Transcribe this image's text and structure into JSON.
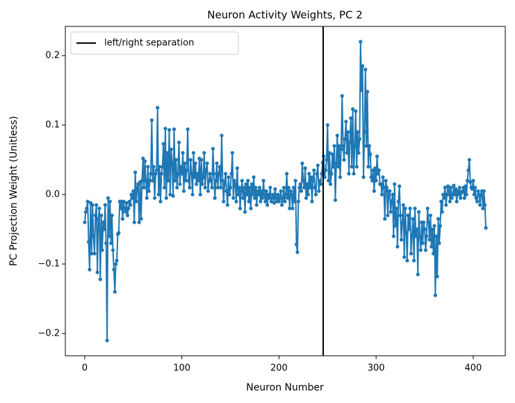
{
  "chart_data": {
    "type": "line",
    "title": "Neuron Activity Weights, PC 2",
    "x_label": "Neuron Number",
    "y_label": "PC Projection Weight (Unitless)",
    "xlim": [
      -20,
      433
    ],
    "xticks": [
      0,
      100,
      200,
      300,
      400
    ],
    "ylim": [
      -0.232,
      0.242
    ],
    "yticks": [
      {
        "value": -0.2,
        "label": "−0.2"
      },
      {
        "value": -0.1,
        "label": "−0.1"
      },
      {
        "value": 0,
        "label": "0.0"
      },
      0.1,
      0.2
    ],
    "grid": false,
    "legend": "upper left",
    "vlines": [
      {
        "x": 245.5,
        "name": "left/right separation",
        "color": "#000000"
      }
    ],
    "series": [
      {
        "color": "#1f77b4",
        "values": [
          -0.04,
          -0.025,
          -0.02,
          -0.01,
          -0.068,
          -0.108,
          -0.012,
          -0.085,
          -0.015,
          -0.06,
          -0.085,
          -0.03,
          -0.015,
          -0.112,
          -0.035,
          -0.02,
          -0.122,
          -0.03,
          -0.08,
          -0.04,
          -0.05,
          -0.015,
          -0.07,
          -0.21,
          -0.005,
          -0.06,
          -0.01,
          -0.07,
          -0.03,
          -0.08,
          -0.108,
          -0.14,
          -0.1,
          -0.095,
          -0.057,
          -0.055,
          -0.01,
          -0.02,
          -0.01,
          -0.035,
          -0.01,
          -0.02,
          -0.025,
          -0.012,
          -0.03,
          -0.02,
          -0.01,
          -0.015,
          0.0,
          -0.005,
          0.005,
          -0.04,
          0.032,
          -0.01,
          0.01,
          0.015,
          -0.04,
          0.018,
          -0.035,
          0.02,
          0.052,
          0.01,
          0.048,
          0.02,
          -0.005,
          0.04,
          0.005,
          0.02,
          0.03,
          0.107,
          0.02,
          0.04,
          -0.005,
          0.03,
          0.035,
          0.125,
          0.0,
          0.04,
          -0.01,
          0.03,
          0.04,
          0.073,
          0.01,
          0.095,
          -0.005,
          0.06,
          0.02,
          0.093,
          0.0,
          0.065,
          0.045,
          -0.002,
          0.094,
          0.02,
          0.05,
          0.01,
          0.03,
          0.075,
          0.015,
          0.04,
          0.03,
          0.06,
          0.005,
          0.045,
          0.02,
          0.035,
          0.094,
          0.02,
          0.01,
          0.05,
          0.03,
          0.0,
          0.06,
          0.025,
          0.045,
          0.015,
          0.03,
          0.02,
          0.052,
          0.0,
          0.05,
          0.015,
          0.025,
          0.06,
          0.01,
          0.035,
          0.045,
          0.005,
          0.02,
          0.03,
          0.02,
          0.01,
          0.066,
          0.03,
          -0.005,
          0.02,
          0.045,
          0.01,
          0.03,
          0.04,
          0.01,
          0.085,
          0.02,
          -0.01,
          0.015,
          0.03,
          0.005,
          -0.015,
          0.025,
          0.0,
          0.01,
          0.03,
          0.06,
          -0.005,
          0.02,
          0.015,
          -0.01,
          0.038,
          0.0,
          0.01,
          -0.02,
          0.005,
          0.02,
          -0.005,
          0.01,
          -0.025,
          0.015,
          0.0,
          0.02,
          -0.01,
          0.01,
          -0.02,
          0.015,
          0.0,
          0.025,
          -0.005,
          0.01,
          -0.015,
          0.005,
          0.0,
          0.01,
          -0.01,
          0.005,
          -0.005,
          0.02,
          0.0,
          -0.01,
          0.005,
          -0.015,
          0.0,
          -0.005,
          0.01,
          -0.01,
          -0.005,
          0.0,
          -0.012,
          0.008,
          -0.005,
          -0.01,
          0.0,
          -0.01,
          -0.005,
          0.005,
          -0.015,
          -0.005,
          0.01,
          -0.01,
          0.0,
          0.03,
          -0.005,
          0.01,
          -0.02,
          0.005,
          0.0,
          -0.02,
          0.01,
          -0.01,
          0.02,
          -0.072,
          -0.083,
          -0.01,
          0.01,
          0.015,
          0.005,
          0.045,
          0.02,
          0.01,
          0.038,
          -0.005,
          0.015,
          0.0,
          0.03,
          0.01,
          0.025,
          -0.01,
          0.02,
          0.035,
          0.01,
          0.0,
          0.03,
          0.042,
          0.005,
          0.02,
          0.015,
          0.03,
          0.046,
          0.055,
          0.025,
          0.035,
          0.05,
          0.1,
          0.02,
          0.06,
          0.015,
          0.03,
          0.058,
          0.04,
          0.07,
          -0.008,
          0.045,
          0.085,
          0.04,
          0.07,
          0.025,
          0.065,
          0.142,
          0.07,
          0.05,
          0.08,
          0.105,
          0.06,
          0.09,
          0.03,
          0.075,
          0.11,
          0.04,
          0.123,
          0.03,
          0.07,
          0.12,
          0.04,
          0.09,
          0.06,
          0.08,
          0.22,
          0.15,
          0.185,
          0.025,
          0.09,
          0.18,
          0.07,
          0.148,
          0.04,
          0.07,
          0.058,
          0.025,
          0.02,
          0.035,
          0.005,
          0.038,
          0.02,
          0.055,
          0.03,
          0.035,
          0.015,
          0.015,
          0.0,
          0.025,
          0.01,
          -0.035,
          0.02,
          0.01,
          -0.03,
          0.005,
          0.005,
          -0.025,
          -0.01,
          0.0,
          -0.06,
          0.015,
          -0.045,
          -0.02,
          -0.075,
          -0.01,
          0.012,
          -0.03,
          -0.065,
          -0.04,
          -0.015,
          -0.09,
          -0.02,
          -0.055,
          -0.095,
          -0.03,
          -0.05,
          -0.02,
          -0.085,
          -0.06,
          -0.035,
          -0.095,
          -0.02,
          -0.06,
          -0.05,
          -0.115,
          -0.025,
          -0.06,
          -0.08,
          -0.04,
          -0.07,
          -0.04,
          -0.05,
          -0.08,
          -0.06,
          -0.02,
          -0.04,
          -0.065,
          -0.03,
          -0.075,
          -0.05,
          -0.085,
          -0.045,
          -0.145,
          -0.06,
          -0.118,
          -0.035,
          -0.07,
          -0.045,
          -0.01,
          -0.025,
          0.0,
          -0.005,
          0.01,
          -0.015,
          0.0,
          0.012,
          0.005,
          -0.01,
          0.01,
          -0.005,
          0.0,
          0.013,
          0.0,
          0.008,
          -0.01,
          0.005,
          0.0,
          0.01,
          -0.005,
          0.003,
          0.005,
          0.01,
          -0.005,
          0.012,
          0.0,
          0.02,
          0.035,
          0.05,
          0.018,
          0.01,
          0.008,
          0.02,
          0.0,
          0.01,
          -0.005,
          -0.01,
          0.005,
          0.0,
          -0.015,
          0.0,
          0.005,
          -0.02,
          0.005,
          -0.015,
          -0.048
        ]
      }
    ]
  }
}
